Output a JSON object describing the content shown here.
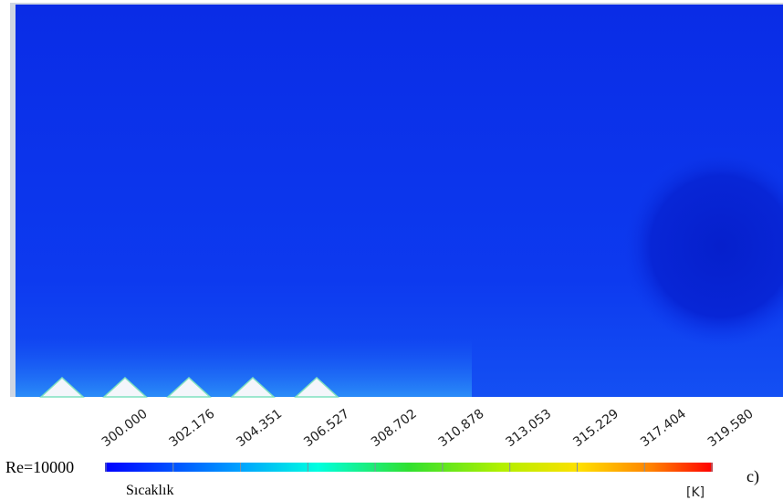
{
  "contour": {
    "ticks": [
      "300.000",
      "302.176",
      "304.351",
      "306.527",
      "308.702",
      "310.878",
      "313.053",
      "315.229",
      "317.404",
      "319.580"
    ],
    "case": "Re=10000",
    "variable": "Sıcaklık",
    "unit": "[K]",
    "panel": "c)"
  }
}
